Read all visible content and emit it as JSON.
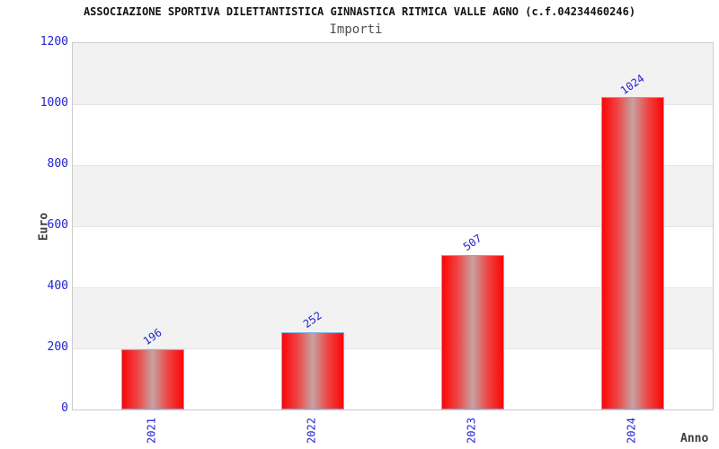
{
  "chart_data": {
    "type": "bar",
    "title": "ASSOCIAZIONE SPORTIVA DILETTANTISTICA GINNASTICA RITMICA VALLE AGNO (c.f.04234460246)",
    "subtitle": "Importi",
    "categories": [
      "2021",
      "2022",
      "2023",
      "2024"
    ],
    "values": [
      196,
      252,
      507,
      1024
    ],
    "xlabel": "Anno",
    "ylabel": "Euro",
    "ylim": [
      0,
      1200
    ],
    "ytick_step": 200,
    "ytick_labels": [
      "0",
      "200",
      "400",
      "600",
      "800",
      "1000",
      "1200"
    ],
    "grid": "horizontal-alternating-bands",
    "legend": "none",
    "colors": {
      "label_blue": "#2222d4",
      "bar_edge_red": "#fb0606",
      "bar_center": "#c7a2a2",
      "bar_border_blue": "#79aee3",
      "band_gray": "#f2f2f2",
      "plot_border": "#cccccc"
    }
  }
}
